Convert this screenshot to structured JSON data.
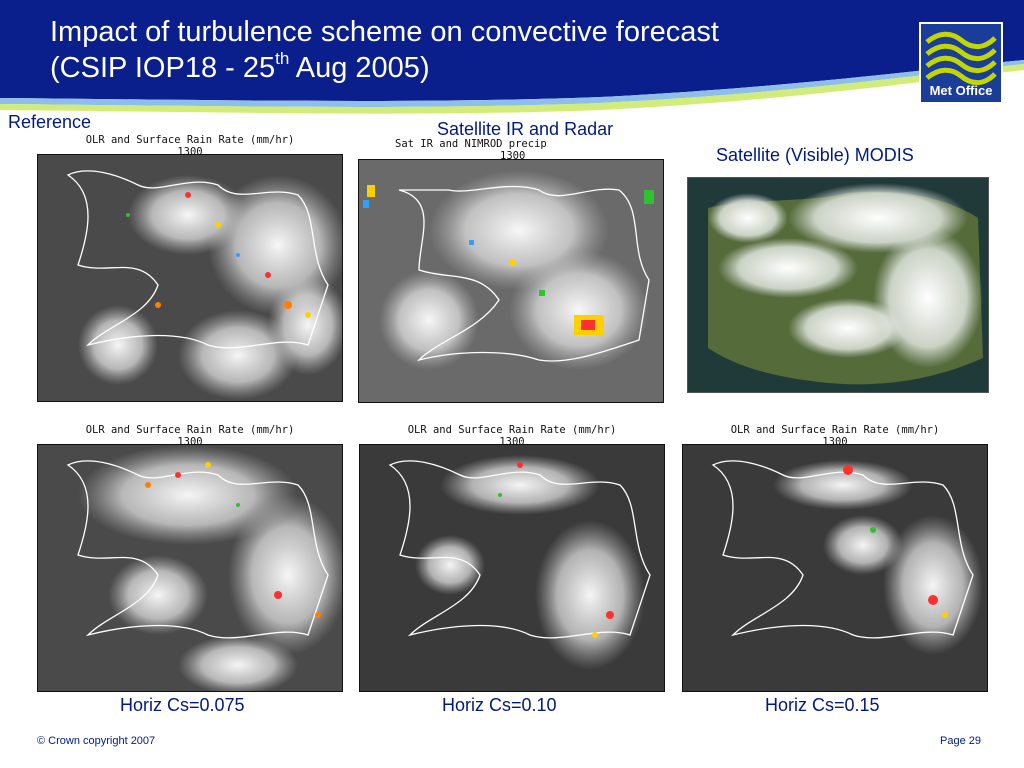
{
  "slide": {
    "title_line1": "Impact of turbulence scheme on convective forecast",
    "title_line2_pre": "(CSIP IOP18 - 25",
    "title_sup": "th",
    "title_line2_post": " Aug  2005)",
    "logo_text": "Met Office",
    "colors": {
      "navy": "#0b1f8c",
      "text_blue": "#001a80",
      "logo_green": "#c4d600"
    }
  },
  "panels": {
    "reference": {
      "caption": "Reference",
      "plot_title": "OLR and Surface Rain Rate (mm/hr)",
      "time": "1300"
    },
    "satellite_radar": {
      "caption": "Satellite IR and Radar",
      "plot_title": "Sat IR and NIMROD precip",
      "time": "1300"
    },
    "modis": {
      "caption": "Satellite (Visible) MODIS"
    },
    "cs0075": {
      "caption": "Horiz  Cs=0.075",
      "plot_title": "OLR and Surface Rain Rate (mm/hr)",
      "time": "1300"
    },
    "cs010": {
      "caption": "Horiz  Cs=0.10",
      "plot_title": "OLR and Surface Rain Rate (mm/hr)",
      "time": "1300"
    },
    "cs015": {
      "caption": "Horiz  Cs=0.15",
      "plot_title": "OLR and Surface Rain Rate (mm/hr)",
      "time": "1300"
    }
  },
  "footer": {
    "copyright": "© Crown copyright 2007",
    "page": "Page 29"
  }
}
